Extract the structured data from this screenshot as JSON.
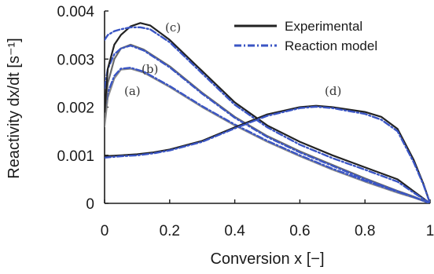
{
  "chart_data": {
    "type": "line",
    "xlabel": "Conversion x [−]",
    "ylabel": "Reactivity dx/dt [s⁻¹]",
    "xlim": [
      0,
      1
    ],
    "ylim": [
      0,
      0.004
    ],
    "xticks": [
      "0",
      "0.2",
      "0.4",
      "0.6",
      "0.8",
      "1"
    ],
    "yticks": [
      "0",
      "0.001",
      "0.002",
      "0.003",
      "0.004"
    ],
    "grid": false,
    "legend": {
      "position": "top-right",
      "entries": [
        {
          "label": "Experimental",
          "color": "#222222",
          "style": "solid"
        },
        {
          "label": "Reaction model",
          "color": "#3a55c4",
          "style": "dash-dot"
        }
      ]
    },
    "curve_labels": [
      "(a)",
      "(b)",
      "(c)",
      "(d)"
    ],
    "series": [
      {
        "label": "(a)",
        "kind": "experimental",
        "color": "#8c8c8c",
        "x": [
          0,
          0.01,
          0.03,
          0.05,
          0.08,
          0.12,
          0.2,
          0.3,
          0.4,
          0.5,
          0.6,
          0.7,
          0.8,
          0.9,
          0.95,
          1.0
        ],
        "y": [
          0.0016,
          0.0022,
          0.0026,
          0.00278,
          0.0028,
          0.00272,
          0.00242,
          0.002,
          0.00162,
          0.00128,
          0.00098,
          0.0007,
          0.00045,
          0.00022,
          0.00012,
          0.0
        ]
      },
      {
        "label": "(a)",
        "kind": "model",
        "color": "#3a55c4",
        "x": [
          0,
          0.01,
          0.03,
          0.05,
          0.08,
          0.12,
          0.2,
          0.3,
          0.4,
          0.5,
          0.6,
          0.7,
          0.8,
          0.9,
          0.95,
          1.0
        ],
        "y": [
          0.0019,
          0.0023,
          0.00265,
          0.0028,
          0.00282,
          0.00274,
          0.00244,
          0.00202,
          0.00164,
          0.0013,
          0.001,
          0.00072,
          0.00047,
          0.00024,
          0.00013,
          0.0
        ]
      },
      {
        "label": "(b)",
        "kind": "experimental",
        "color": "#6a6a6a",
        "x": [
          0,
          0.01,
          0.03,
          0.05,
          0.08,
          0.12,
          0.2,
          0.3,
          0.4,
          0.5,
          0.6,
          0.7,
          0.8,
          0.9,
          0.95,
          1.0
        ],
        "y": [
          0.0018,
          0.0025,
          0.003,
          0.00322,
          0.0033,
          0.0032,
          0.00285,
          0.0023,
          0.0018,
          0.0014,
          0.00108,
          0.0008,
          0.00052,
          0.00026,
          0.00014,
          0.0
        ]
      },
      {
        "label": "(b)",
        "kind": "model",
        "color": "#3a55c4",
        "x": [
          0,
          0.01,
          0.03,
          0.05,
          0.08,
          0.12,
          0.2,
          0.3,
          0.4,
          0.5,
          0.6,
          0.7,
          0.8,
          0.9,
          0.95,
          1.0
        ],
        "y": [
          0.0024,
          0.0028,
          0.0031,
          0.00322,
          0.00328,
          0.00318,
          0.00283,
          0.00228,
          0.00178,
          0.00138,
          0.00106,
          0.00078,
          0.0005,
          0.00025,
          0.00013,
          0.0
        ]
      },
      {
        "label": "(c)",
        "kind": "experimental",
        "color": "#222222",
        "x": [
          0,
          0.01,
          0.03,
          0.05,
          0.08,
          0.11,
          0.14,
          0.2,
          0.3,
          0.4,
          0.5,
          0.6,
          0.7,
          0.8,
          0.9,
          0.95,
          1.0
        ],
        "y": [
          0.0019,
          0.0028,
          0.0033,
          0.0035,
          0.00368,
          0.00375,
          0.0037,
          0.0034,
          0.00275,
          0.0021,
          0.00162,
          0.00128,
          0.001,
          0.00075,
          0.0005,
          0.00025,
          0.0
        ]
      },
      {
        "label": "(c)",
        "kind": "model",
        "color": "#3a55c4",
        "x": [
          0,
          0.01,
          0.03,
          0.05,
          0.08,
          0.11,
          0.14,
          0.2,
          0.3,
          0.4,
          0.5,
          0.6,
          0.7,
          0.8,
          0.9,
          0.95,
          1.0
        ],
        "y": [
          0.0034,
          0.0035,
          0.00358,
          0.00362,
          0.00366,
          0.00366,
          0.00362,
          0.00335,
          0.0027,
          0.00205,
          0.00158,
          0.00122,
          0.00094,
          0.0007,
          0.00045,
          0.00022,
          0.0
        ]
      },
      {
        "label": "(d)",
        "kind": "experimental",
        "color": "#222222",
        "x": [
          0,
          0.05,
          0.1,
          0.15,
          0.2,
          0.3,
          0.4,
          0.5,
          0.6,
          0.65,
          0.7,
          0.8,
          0.85,
          0.9,
          0.95,
          0.98,
          1.0
        ],
        "y": [
          0.00098,
          0.001,
          0.00102,
          0.00106,
          0.00112,
          0.0013,
          0.00158,
          0.00185,
          0.002,
          0.00203,
          0.002,
          0.0019,
          0.0018,
          0.00155,
          0.0009,
          0.0004,
          0.0
        ]
      },
      {
        "label": "(d)",
        "kind": "model",
        "color": "#3a55c4",
        "x": [
          0,
          0.05,
          0.1,
          0.15,
          0.2,
          0.3,
          0.4,
          0.5,
          0.6,
          0.65,
          0.7,
          0.8,
          0.85,
          0.9,
          0.95,
          0.98,
          1.0
        ],
        "y": [
          0.00095,
          0.00098,
          0.001,
          0.00104,
          0.0011,
          0.00128,
          0.00156,
          0.00182,
          0.00198,
          0.00201,
          0.00198,
          0.00186,
          0.00174,
          0.0015,
          0.00085,
          0.00038,
          0.0
        ]
      }
    ]
  }
}
